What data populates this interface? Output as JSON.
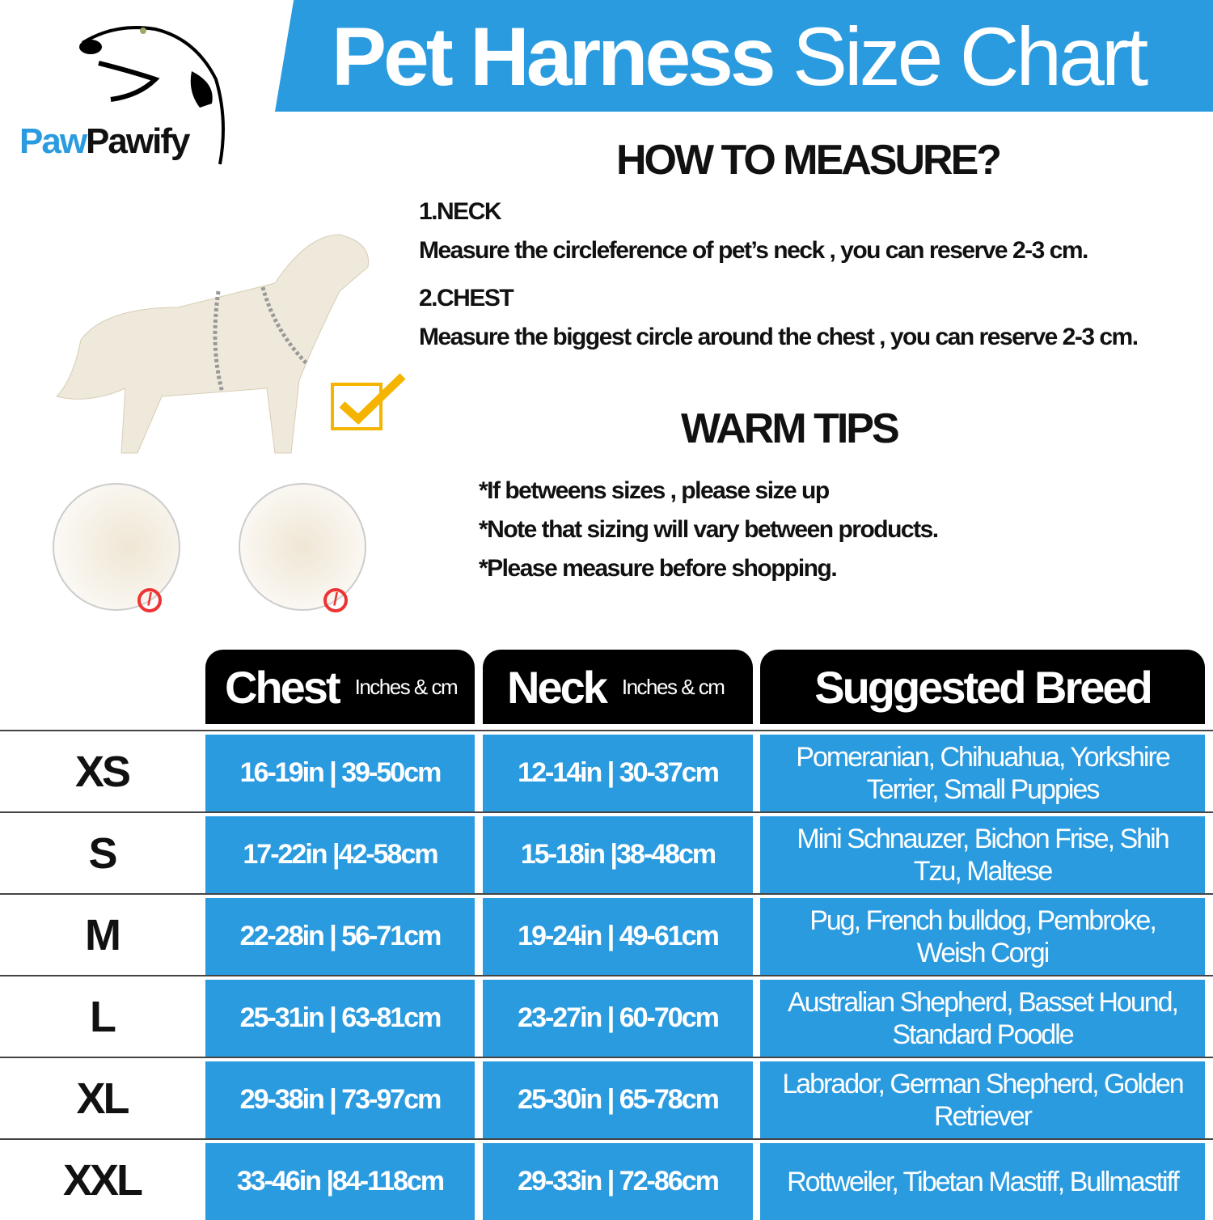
{
  "brand": {
    "part1": "Paw",
    "part2": "Pawify"
  },
  "title": {
    "bold": "Pet Harness",
    "light": "Size Chart"
  },
  "colors": {
    "accent": "#2b9be0",
    "header": "#000000"
  },
  "how_to": {
    "heading": "HOW TO MEASURE?",
    "neck_label": "1.NECK",
    "neck_text": "Measure the circleference of pet’s neck , you can reserve 2-3 cm.",
    "chest_label": "2.CHEST",
    "chest_text": "Measure the biggest circle around the chest , you can reserve 2-3 cm."
  },
  "tips": {
    "heading": "WARM TIPS",
    "items": [
      "*If betweens sizes , please size up",
      "*Note that sizing will vary between products.",
      "*Please measure before shopping."
    ]
  },
  "icons": [
    "dog-logo",
    "check-icon",
    "prohibited-icon"
  ],
  "table": {
    "headers": {
      "chest": "Chest",
      "chest_unit": "Inches & cm",
      "neck": "Neck",
      "neck_unit": "Inches & cm",
      "breed": "Suggested Breed"
    },
    "rows": [
      {
        "size": "XS",
        "chest": "16-19in | 39-50cm",
        "neck": "12-14in | 30-37cm",
        "breed": "Pomeranian,  Chihuahua, Yorkshire Terrier,  Small Puppies"
      },
      {
        "size": "S",
        "chest": "17-22in |42-58cm",
        "neck": "15-18in |38-48cm",
        "breed": "Mini Schnauzer,  Bichon Frise, Shih Tzu,  Maltese"
      },
      {
        "size": "M",
        "chest": "22-28in | 56-71cm",
        "neck": "19-24in | 49-61cm",
        "breed": "Pug,  French bulldog,  Pembroke, Weish Corgi"
      },
      {
        "size": "L",
        "chest": "25-31in | 63-81cm",
        "neck": "23-27in | 60-70cm",
        "breed": "Australian Shepherd,  Basset Hound,  Standard Poodle"
      },
      {
        "size": "XL",
        "chest": "29-38in | 73-97cm",
        "neck": "25-30in | 65-78cm",
        "breed": "Labrador,  German Shepherd, Golden Retriever"
      },
      {
        "size": "XXL",
        "chest": "33-46in |84-118cm",
        "neck": "29-33in | 72-86cm",
        "breed": "Rottweiler,  Tibetan Mastiff, Bullmastiff"
      }
    ]
  }
}
